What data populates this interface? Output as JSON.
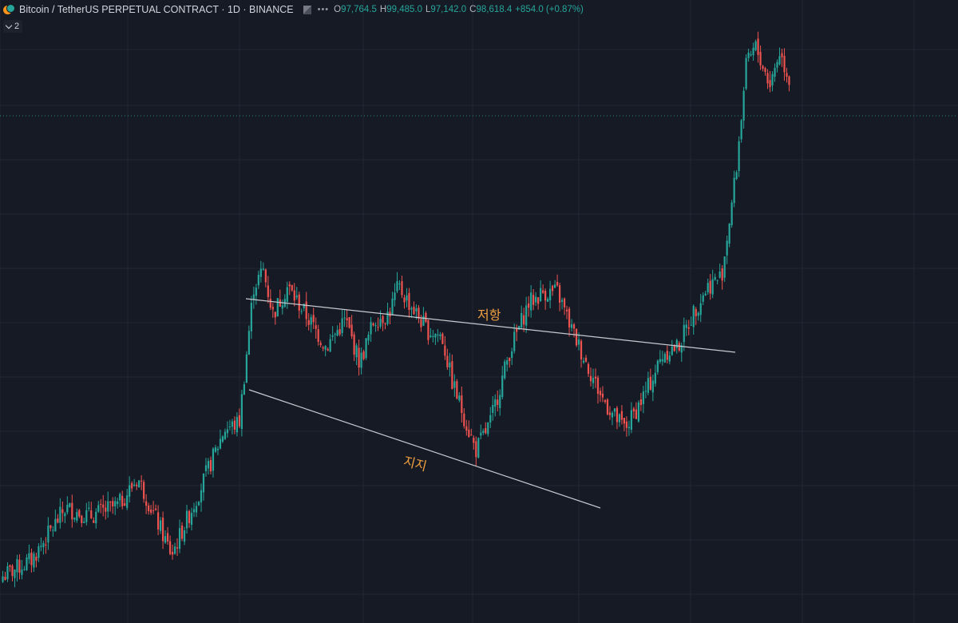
{
  "header": {
    "symbol_title": "Bitcoin / TetherUS PERPETUAL CONTRACT · 1D · BINANCE",
    "ohlc": {
      "o_label": "O",
      "o_value": "97,764.5",
      "h_label": "H",
      "h_value": "99,485.0",
      "l_label": "L",
      "l_value": "97,142.0",
      "c_label": "C",
      "c_value": "98,618.4",
      "change": "+854.0 (+0.87%)"
    },
    "indicator_count": "2"
  },
  "annotations": {
    "resistance": "저항",
    "support": "지지"
  },
  "colors": {
    "background": "#161a25",
    "grid": "#232734",
    "up": "#26a69a",
    "down": "#ef5350",
    "trendline": "#c8cad0",
    "annotation_text": "#f0a040",
    "last_price_line": "#26a69a"
  },
  "chart_data": {
    "type": "candlestick",
    "symbol": "BTCUSDT.P",
    "timeframe": "1D",
    "last_close": 98618.4,
    "candles_close_path": [
      [
        0.0,
        0.03
      ],
      [
        0.03,
        0.06
      ],
      [
        0.065,
        0.155
      ],
      [
        0.09,
        0.14
      ],
      [
        0.12,
        0.16
      ],
      [
        0.14,
        0.21
      ],
      [
        0.165,
        0.11
      ],
      [
        0.175,
        0.07
      ],
      [
        0.19,
        0.13
      ],
      [
        0.2,
        0.17
      ],
      [
        0.23,
        0.3
      ],
      [
        0.245,
        0.31
      ],
      [
        0.26,
        0.56
      ],
      [
        0.27,
        0.59
      ],
      [
        0.28,
        0.51
      ],
      [
        0.295,
        0.56
      ],
      [
        0.31,
        0.52
      ],
      [
        0.335,
        0.45
      ],
      [
        0.355,
        0.5
      ],
      [
        0.37,
        0.42
      ],
      [
        0.385,
        0.5
      ],
      [
        0.4,
        0.51
      ],
      [
        0.41,
        0.56
      ],
      [
        0.425,
        0.52
      ],
      [
        0.44,
        0.48
      ],
      [
        0.455,
        0.47
      ],
      [
        0.465,
        0.39
      ],
      [
        0.49,
        0.26
      ],
      [
        0.505,
        0.31
      ],
      [
        0.525,
        0.44
      ],
      [
        0.545,
        0.53
      ],
      [
        0.56,
        0.55
      ],
      [
        0.575,
        0.55
      ],
      [
        0.59,
        0.48
      ],
      [
        0.605,
        0.42
      ],
      [
        0.62,
        0.36
      ],
      [
        0.635,
        0.32
      ],
      [
        0.645,
        0.3
      ],
      [
        0.655,
        0.33
      ],
      [
        0.67,
        0.38
      ],
      [
        0.685,
        0.44
      ],
      [
        0.7,
        0.45
      ],
      [
        0.715,
        0.51
      ],
      [
        0.73,
        0.56
      ],
      [
        0.745,
        0.58
      ],
      [
        0.76,
        0.77
      ],
      [
        0.77,
        0.96
      ],
      [
        0.78,
        1.0
      ],
      [
        0.795,
        0.93
      ],
      [
        0.805,
        0.99
      ],
      [
        0.815,
        0.94
      ]
    ],
    "trendlines": [
      {
        "name": "resistance",
        "label": "저항"
      },
      {
        "name": "support",
        "label": "지지"
      }
    ],
    "grid": true,
    "last_price_line": true
  }
}
